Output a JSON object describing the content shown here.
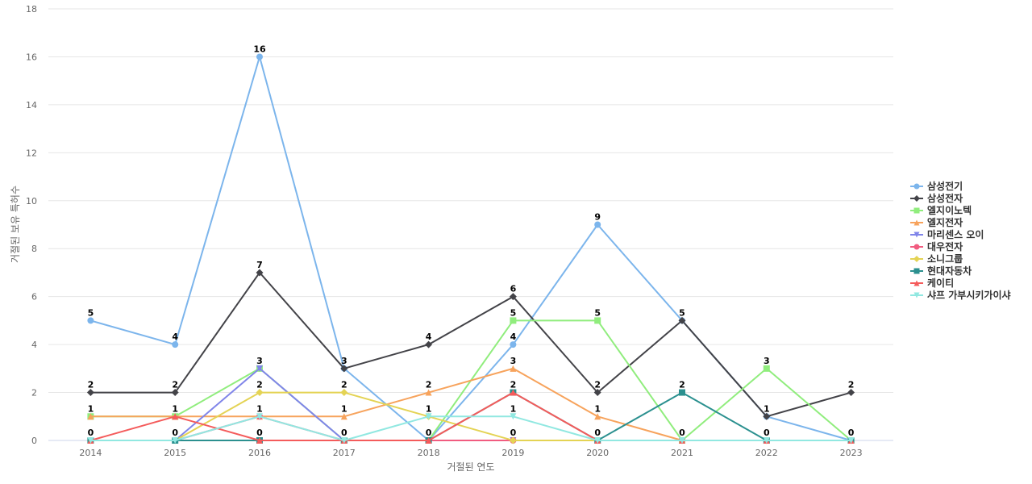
{
  "chart_data": {
    "type": "line",
    "xlabel": "거절된 연도",
    "ylabel": "거절된 보유 특허수",
    "ylim": [
      0,
      18
    ],
    "yticks": [
      0,
      2,
      4,
      6,
      8,
      10,
      12,
      14,
      16,
      18
    ],
    "grid": true,
    "legend_position": "right",
    "categories": [
      "2014",
      "2015",
      "2016",
      "2017",
      "2018",
      "2019",
      "2020",
      "2021",
      "2022",
      "2023"
    ],
    "series": [
      {
        "name": "삼성전기",
        "color": "#7cb5ec",
        "marker": "circle",
        "values": [
          5,
          4,
          16,
          3,
          0,
          4,
          9,
          5,
          1,
          0
        ]
      },
      {
        "name": "삼성전자",
        "color": "#434348",
        "marker": "diamond",
        "values": [
          2,
          2,
          7,
          3,
          4,
          6,
          2,
          5,
          1,
          2
        ]
      },
      {
        "name": "엘지이노텍",
        "color": "#90ed7d",
        "marker": "square",
        "values": [
          1,
          1,
          3,
          0,
          0,
          5,
          5,
          0,
          3,
          0
        ]
      },
      {
        "name": "엘지전자",
        "color": "#f7a35c",
        "marker": "triangle",
        "values": [
          1,
          1,
          1,
          1,
          2,
          3,
          1,
          0,
          0,
          0
        ]
      },
      {
        "name": "마리센스 오이",
        "color": "#8085e9",
        "marker": "triangle-down",
        "values": [
          0,
          0,
          3,
          0,
          0,
          0,
          0,
          0,
          0,
          0
        ]
      },
      {
        "name": "대우전자",
        "color": "#f15c80",
        "marker": "circle",
        "values": [
          0,
          0,
          1,
          0,
          0,
          0,
          0,
          0,
          0,
          0
        ]
      },
      {
        "name": "소니그룹",
        "color": "#e4d354",
        "marker": "diamond",
        "values": [
          0,
          0,
          2,
          2,
          1,
          0,
          0,
          0,
          0,
          0
        ]
      },
      {
        "name": "현대자동차",
        "color": "#2b908f",
        "marker": "square",
        "values": [
          0,
          0,
          0,
          0,
          0,
          2,
          0,
          2,
          0,
          0
        ]
      },
      {
        "name": "케이티",
        "color": "#f45b5b",
        "marker": "triangle",
        "values": [
          0,
          1,
          0,
          0,
          0,
          2,
          0,
          0,
          0,
          0
        ]
      },
      {
        "name": "샤프 가부시키가이샤",
        "color": "#91e8e1",
        "marker": "triangle-down",
        "values": [
          0,
          0,
          1,
          0,
          1,
          1,
          0,
          0,
          0,
          0
        ]
      }
    ],
    "data_labels": [
      {
        "x": "2014",
        "values": [
          "5",
          "2",
          "1",
          "0"
        ]
      },
      {
        "x": "2015",
        "values": [
          "4",
          "2",
          "1",
          "0"
        ]
      },
      {
        "x": "2016",
        "values": [
          "16",
          "7",
          "3",
          "2",
          "1",
          "0"
        ]
      },
      {
        "x": "2017",
        "values": [
          "3",
          "2",
          "1",
          "0"
        ]
      },
      {
        "x": "2018",
        "values": [
          "4",
          "2",
          "1",
          "0"
        ]
      },
      {
        "x": "2019",
        "values": [
          "6",
          "5",
          "4",
          "3",
          "2",
          "1",
          "0"
        ]
      },
      {
        "x": "2020",
        "values": [
          "9",
          "5",
          "2",
          "1",
          "0"
        ]
      },
      {
        "x": "2021",
        "values": [
          "5",
          "2",
          "0"
        ]
      },
      {
        "x": "2022",
        "values": [
          "3",
          "1",
          "0"
        ]
      },
      {
        "x": "2023",
        "values": [
          "2",
          "0"
        ]
      }
    ]
  }
}
